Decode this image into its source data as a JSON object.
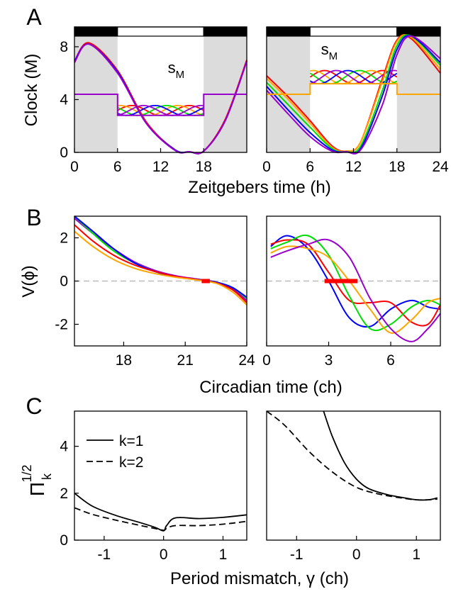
{
  "colors": {
    "red": "#ff0000",
    "green": "#00dd00",
    "blue": "#0000ff",
    "orange": "#ffa500",
    "purple": "#9900cc",
    "shade": "#dcdcdc",
    "zeroline": "#bbbbbb",
    "marker": "#ff0000"
  },
  "chart_data": [
    {
      "panel": "A",
      "type": "line",
      "ylabel": "Clock (M)",
      "xlabel": "Zeitgebers time (h)",
      "subplots": [
        {
          "xlim": [
            0,
            24
          ],
          "ylim": [
            0,
            9.5
          ],
          "xticks": [
            "0",
            "6",
            "12",
            "18"
          ],
          "yticks": [
            "0",
            "4",
            "8"
          ],
          "light_dark_bar": [
            {
              "from": 0,
              "to": 6,
              "state": "dark"
            },
            {
              "from": 6,
              "to": 18,
              "state": "light"
            },
            {
              "from": 18,
              "to": 24,
              "state": "dark"
            }
          ],
          "annotation": "sM",
          "series": [
            {
              "color": "red",
              "x": [
                0,
                2,
                6,
                10,
                14,
                16,
                18,
                21,
                24
              ],
              "y": [
                6.9,
                8.3,
                6.2,
                2.3,
                0.2,
                0.05,
                0.1,
                2.5,
                7.0
              ]
            },
            {
              "color": "blue",
              "x": [
                0,
                2,
                6,
                10,
                14,
                16,
                18,
                21,
                24
              ],
              "y": [
                6.9,
                8.2,
                6.1,
                2.2,
                0.2,
                0.05,
                0.1,
                2.4,
                6.9
              ]
            },
            {
              "color": "purple",
              "x": [
                0,
                2,
                6,
                10,
                14,
                16,
                18,
                21,
                24
              ],
              "y": [
                6.8,
                8.2,
                6.0,
                2.2,
                0.15,
                0.05,
                0.1,
                2.4,
                6.9
              ]
            },
            {
              "color": "purple",
              "name": "sM dark",
              "x": [
                0,
                6,
                6,
                18,
                18,
                24
              ],
              "y": [
                4.4,
                4.4,
                2.8,
                2.8,
                4.4,
                4.4
              ]
            }
          ],
          "sM_band": {
            "range": [
              2.8,
              3.55
            ],
            "x": [
              6,
              18
            ]
          }
        },
        {
          "xlim": [
            0,
            24
          ],
          "ylim": [
            0,
            9.5
          ],
          "xticks": [
            "0",
            "6",
            "12",
            "18",
            "24"
          ],
          "yticks": [],
          "light_dark_bar": [
            {
              "from": 0,
              "to": 6,
              "state": "dark"
            },
            {
              "from": 6,
              "to": 18,
              "state": "light"
            },
            {
              "from": 18,
              "to": 24,
              "state": "dark"
            }
          ],
          "annotation": "sM",
          "series": [
            {
              "color": "red",
              "x": [
                0,
                3,
                6,
                9,
                11,
                13,
                16,
                18,
                20,
                24
              ],
              "y": [
                5.8,
                4.2,
                2.4,
                0.5,
                0.1,
                0.8,
                5.6,
                8.5,
                8.6,
                6.0
              ]
            },
            {
              "color": "orange",
              "x": [
                0,
                3,
                6,
                9,
                11,
                13,
                16,
                18,
                20,
                24
              ],
              "y": [
                5.6,
                4.0,
                2.2,
                0.4,
                0.1,
                0.8,
                5.4,
                8.4,
                8.7,
                6.3
              ]
            },
            {
              "color": "green",
              "x": [
                0,
                3,
                6,
                9,
                11,
                13,
                16,
                18,
                20,
                24
              ],
              "y": [
                5.3,
                3.6,
                1.9,
                0.3,
                0.05,
                0.5,
                4.7,
                8.1,
                8.8,
                6.6
              ]
            },
            {
              "color": "blue",
              "x": [
                0,
                3,
                6,
                9,
                11,
                13,
                16,
                18,
                20,
                24
              ],
              "y": [
                5.0,
                3.2,
                1.5,
                0.2,
                0.05,
                0.3,
                4.3,
                7.8,
                8.8,
                6.8
              ]
            },
            {
              "color": "purple",
              "x": [
                0,
                3,
                6,
                9,
                11,
                13,
                16,
                18,
                20,
                24
              ],
              "y": [
                4.7,
                2.9,
                1.2,
                0.1,
                0.05,
                0.2,
                3.6,
                7.4,
                8.8,
                7.1
              ]
            },
            {
              "color": "orange",
              "name": "sM dark",
              "x": [
                0,
                6,
                6,
                18,
                18,
                24
              ],
              "y": [
                4.4,
                4.4,
                5.2,
                5.2,
                4.4,
                4.4
              ]
            }
          ],
          "sM_band": {
            "range": [
              5.2,
              6.2
            ],
            "x": [
              6,
              18
            ]
          }
        }
      ]
    },
    {
      "panel": "B",
      "type": "line",
      "ylabel": "V(ϕ)",
      "xlabel": "Circadian time (ch)",
      "subplots": [
        {
          "xlim": [
            15.6,
            24
          ],
          "ylim": [
            -3,
            3
          ],
          "xticks": [
            "18",
            "21",
            "24"
          ],
          "yticks": [
            "-2",
            "0",
            "2"
          ],
          "marker": {
            "from": 21.8,
            "to": 22.2,
            "y": 0
          },
          "series": [
            {
              "color": "purple",
              "x": [
                15.6,
                16.5,
                17.5,
                18.5,
                19.5,
                20.5,
                21.5,
                22.5,
                23.3,
                24
              ],
              "y": [
                2.9,
                2.2,
                1.5,
                0.9,
                0.5,
                0.25,
                0.1,
                -0.05,
                -0.35,
                -0.9
              ]
            },
            {
              "color": "green",
              "x": [
                15.6,
                16.5,
                17.5,
                18.5,
                19.5,
                20.5,
                21.5,
                22.5,
                23.3,
                24
              ],
              "y": [
                3.0,
                2.2,
                1.4,
                0.85,
                0.45,
                0.2,
                0.08,
                -0.05,
                -0.3,
                -0.8
              ]
            },
            {
              "color": "blue",
              "x": [
                15.6,
                16.5,
                17.5,
                18.5,
                19.5,
                20.5,
                21.5,
                22.5,
                23.3,
                24
              ],
              "y": [
                3.0,
                2.3,
                1.5,
                0.85,
                0.45,
                0.2,
                0.08,
                -0.05,
                -0.3,
                -0.75
              ]
            },
            {
              "color": "red",
              "x": [
                15.6,
                16.5,
                17.5,
                18.5,
                19.5,
                20.5,
                21.5,
                22.5,
                23.3,
                24
              ],
              "y": [
                2.6,
                1.85,
                1.2,
                0.75,
                0.45,
                0.22,
                0.08,
                -0.08,
                -0.4,
                -1.0
              ]
            },
            {
              "color": "orange",
              "x": [
                15.6,
                16.5,
                17.5,
                18.5,
                19.5,
                20.5,
                21.5,
                22.5,
                23.3,
                24
              ],
              "y": [
                2.3,
                1.6,
                1.0,
                0.6,
                0.35,
                0.18,
                0.06,
                -0.1,
                -0.5,
                -1.1
              ]
            }
          ]
        },
        {
          "xlim": [
            0,
            8.4
          ],
          "ylim": [
            -3,
            3
          ],
          "xticks": [
            "0",
            "3",
            "6"
          ],
          "yticks": [],
          "marker": {
            "from": 2.8,
            "to": 4.4,
            "y": 0
          },
          "series": [
            {
              "color": "blue",
              "x": [
                0.2,
                1.0,
                2.0,
                3.0,
                4.0,
                5.0,
                6.0,
                7.0,
                7.8,
                8.4
              ],
              "y": [
                1.6,
                2.1,
                1.5,
                0.0,
                -1.7,
                -2.1,
                -1.3,
                -0.9,
                -1.2,
                -1.3
              ]
            },
            {
              "color": "red",
              "x": [
                0.2,
                1.0,
                2.0,
                3.0,
                4.0,
                5.0,
                6.0,
                7.0,
                7.8,
                8.4
              ],
              "y": [
                1.7,
                1.9,
                1.7,
                0.4,
                -0.9,
                -1.0,
                -1.0,
                -1.9,
                -2.0,
                -1.1
              ]
            },
            {
              "color": "green",
              "x": [
                0.2,
                1.0,
                2.0,
                3.0,
                4.0,
                5.0,
                6.0,
                7.0,
                7.8,
                8.4
              ],
              "y": [
                1.5,
                1.8,
                2.1,
                1.2,
                -0.7,
                -2.2,
                -2.0,
                -1.2,
                -0.9,
                -1.1
              ]
            },
            {
              "color": "orange",
              "x": [
                0.2,
                1.0,
                2.0,
                3.0,
                4.0,
                5.0,
                6.0,
                7.0,
                7.8,
                8.4
              ],
              "y": [
                1.3,
                1.6,
                1.5,
                1.1,
                0.0,
                -1.3,
                -2.4,
                -1.8,
                -1.0,
                -0.8
              ]
            },
            {
              "color": "purple",
              "x": [
                0.2,
                1.0,
                2.0,
                3.0,
                4.0,
                5.0,
                6.0,
                7.0,
                7.8,
                8.4
              ],
              "y": [
                1.1,
                1.4,
                1.7,
                1.9,
                1.1,
                -0.8,
                -2.2,
                -2.8,
                -2.2,
                -1.5
              ]
            }
          ]
        }
      ]
    },
    {
      "panel": "C",
      "type": "line",
      "ylabel_main": "Π",
      "ylabel_sub": "k",
      "ylabel_sup": "1/2",
      "xlabel": "Period mismatch, γ (ch)",
      "legend": [
        {
          "label": "k=1",
          "dash": false
        },
        {
          "label": "k=2",
          "dash": true
        }
      ],
      "legend_position": "top-left",
      "subplots": [
        {
          "xlim": [
            -1.5,
            1.4
          ],
          "ylim": [
            0,
            5.5
          ],
          "xticks": [
            "-1",
            "0",
            "1"
          ],
          "yticks": [
            "0",
            "2",
            "4"
          ],
          "series": [
            {
              "name": "k=1",
              "dash": false,
              "x": [
                -1.5,
                -1.2,
                -0.8,
                -0.4,
                -0.15,
                0,
                0.05,
                0.2,
                0.6,
                1.0,
                1.4
              ],
              "y": [
                2.0,
                1.45,
                1.05,
                0.75,
                0.55,
                0.4,
                0.62,
                0.95,
                0.92,
                0.97,
                1.08
              ]
            },
            {
              "name": "k=2",
              "dash": true,
              "x": [
                -1.5,
                -1.2,
                -0.8,
                -0.4,
                -0.15,
                0,
                0.05,
                0.2,
                0.6,
                1.0,
                1.4
              ],
              "y": [
                1.38,
                1.1,
                0.85,
                0.63,
                0.5,
                0.42,
                0.5,
                0.62,
                0.62,
                0.68,
                0.8
              ]
            }
          ]
        },
        {
          "xlim": [
            -1.5,
            1.4
          ],
          "ylim": [
            0,
            5.5
          ],
          "xticks": [
            "-1",
            "0",
            "1"
          ],
          "yticks": [],
          "series": [
            {
              "name": "k=1",
              "dash": false,
              "x": [
                -0.55,
                -0.4,
                -0.2,
                0,
                0.2,
                0.5,
                0.8,
                1.0,
                1.2,
                1.35
              ],
              "y": [
                5.5,
                4.4,
                3.3,
                2.6,
                2.2,
                1.95,
                1.8,
                1.72,
                1.72,
                1.8
              ]
            },
            {
              "name": "k=2",
              "dash": true,
              "x": [
                -1.5,
                -1.2,
                -0.8,
                -0.4,
                0,
                0.4,
                0.8,
                1.0,
                1.2,
                1.35
              ],
              "y": [
                5.5,
                4.9,
                3.8,
                2.9,
                2.25,
                1.95,
                1.78,
                1.72,
                1.72,
                1.75
              ]
            }
          ]
        }
      ]
    }
  ]
}
